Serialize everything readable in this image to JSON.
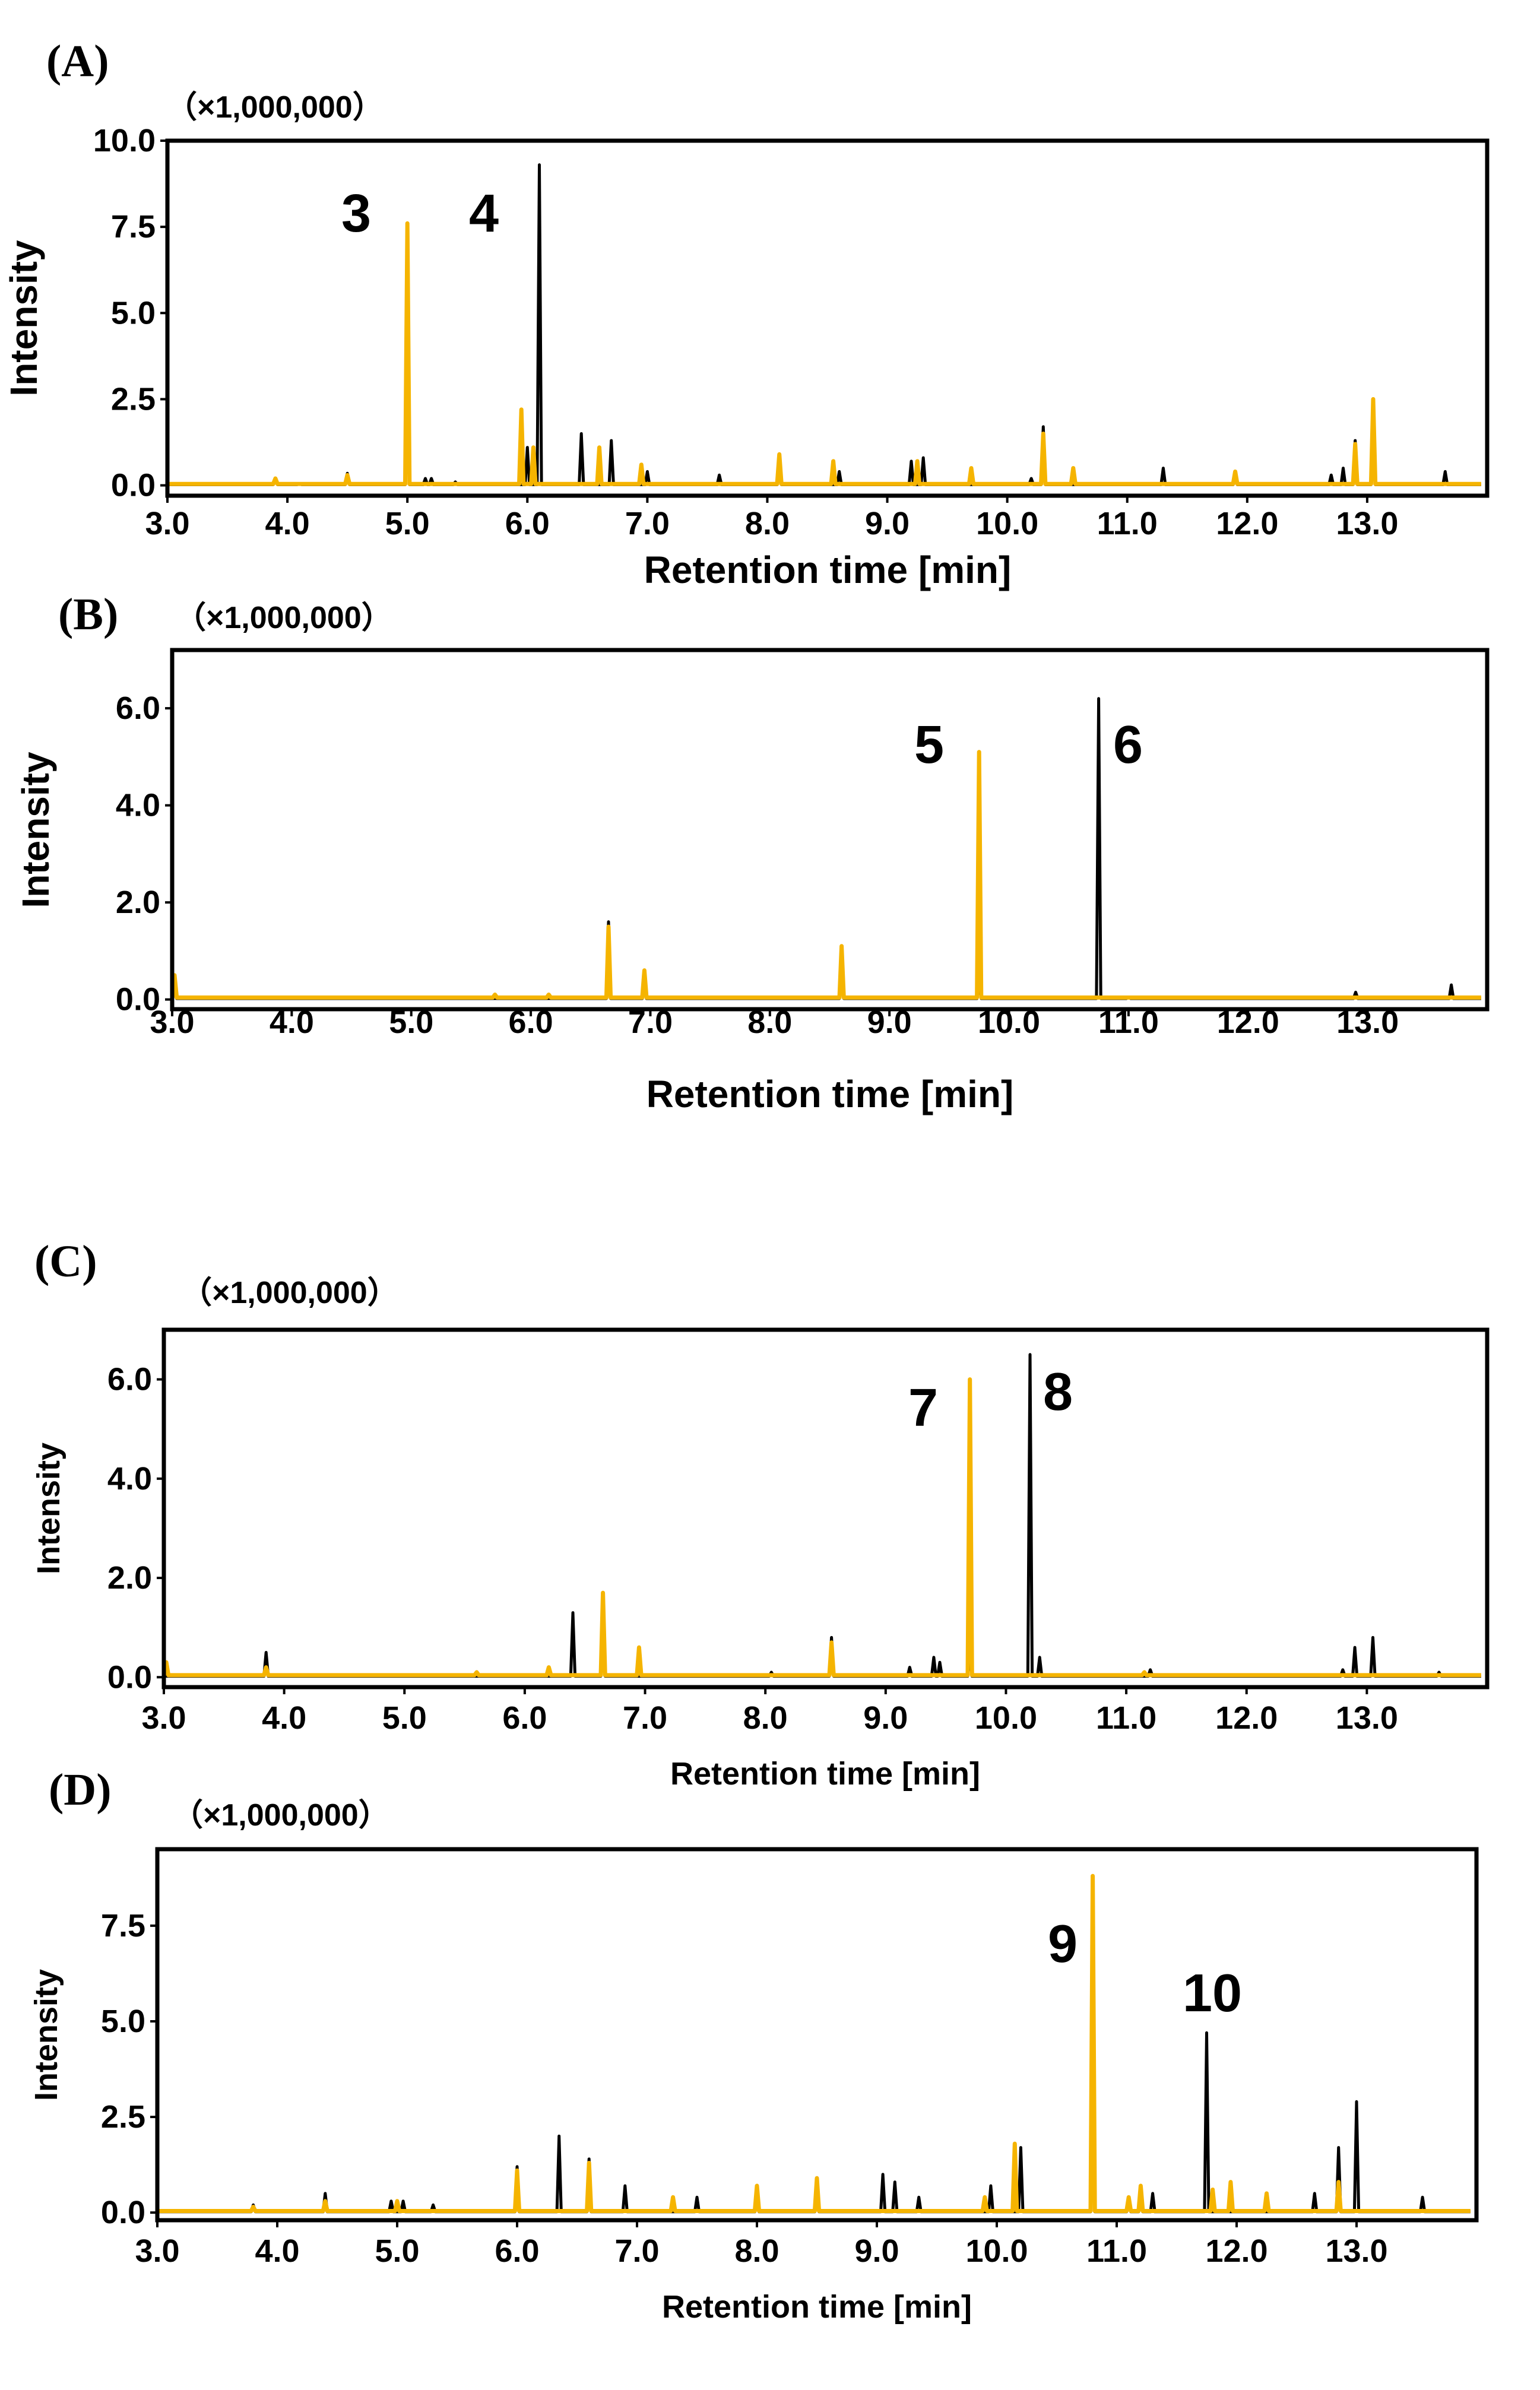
{
  "chart_data": [
    {
      "type": "line",
      "panel_label": "(A)",
      "scale_label": "（×1,000,000）",
      "xlabel": "Retention time [min]",
      "ylabel": "Intensity",
      "xlim": [
        3.0,
        14.0
      ],
      "ylim": [
        -0.3,
        10.0
      ],
      "xticks": [
        "3.0",
        "4.0",
        "5.0",
        "6.0",
        "7.0",
        "8.0",
        "9.0",
        "10.0",
        "11.0",
        "12.0",
        "13.0"
      ],
      "xtick_values": [
        3,
        4,
        5,
        6,
        7,
        8,
        9,
        10,
        11,
        12,
        13
      ],
      "yticks": [
        "0.0",
        "2.5",
        "5.0",
        "7.5",
        "10.0"
      ],
      "ytick_values": [
        0,
        2.5,
        5,
        7.5,
        10
      ],
      "series": [
        {
          "name": "black",
          "color": "#000000",
          "peaks": [
            [
              3.9,
              0.15
            ],
            [
              4.1,
              0.05
            ],
            [
              4.5,
              0.35
            ],
            [
              5.0,
              2.2
            ],
            [
              5.15,
              0.2
            ],
            [
              5.2,
              0.2
            ],
            [
              5.4,
              0.1
            ],
            [
              6.0,
              1.1
            ],
            [
              6.1,
              9.3
            ],
            [
              6.45,
              1.5
            ],
            [
              6.7,
              1.3
            ],
            [
              7.0,
              0.4
            ],
            [
              7.6,
              0.3
            ],
            [
              8.1,
              0.5
            ],
            [
              8.6,
              0.4
            ],
            [
              9.2,
              0.7
            ],
            [
              9.3,
              0.8
            ],
            [
              10.2,
              0.2
            ],
            [
              10.3,
              1.7
            ],
            [
              11.3,
              0.5
            ],
            [
              11.9,
              0.2
            ],
            [
              12.7,
              0.3
            ],
            [
              12.8,
              0.5
            ],
            [
              12.9,
              1.3
            ],
            [
              13.05,
              2.4
            ],
            [
              13.65,
              0.4
            ]
          ]
        },
        {
          "name": "orange",
          "color": "#f5b400",
          "peaks": [
            [
              3.9,
              0.2
            ],
            [
              4.5,
              0.3
            ],
            [
              5.0,
              7.6
            ],
            [
              5.95,
              2.2
            ],
            [
              6.05,
              1.1
            ],
            [
              6.6,
              1.1
            ],
            [
              6.95,
              0.6
            ],
            [
              8.1,
              0.9
            ],
            [
              8.55,
              0.7
            ],
            [
              9.25,
              0.7
            ],
            [
              9.7,
              0.5
            ],
            [
              10.3,
              1.5
            ],
            [
              10.55,
              0.5
            ],
            [
              11.9,
              0.4
            ],
            [
              12.9,
              1.2
            ],
            [
              13.05,
              2.5
            ]
          ]
        }
      ],
      "annotations": [
        {
          "text": "3",
          "x": 5.0
        },
        {
          "text": "4",
          "x": 6.1
        }
      ]
    },
    {
      "type": "line",
      "panel_label": "(B)",
      "scale_label": "（×1,000,000）",
      "xlabel": "Retention time [min]",
      "ylabel": "Intensity",
      "xlim": [
        3.0,
        14.0
      ],
      "ylim": [
        -0.2,
        7.2
      ],
      "xticks": [
        "3.0",
        "4.0",
        "5.0",
        "6.0",
        "7.0",
        "8.0",
        "9.0",
        "10.0",
        "11.0",
        "12.0",
        "13.0"
      ],
      "xtick_values": [
        3,
        4,
        5,
        6,
        7,
        8,
        9,
        10,
        11,
        12,
        13
      ],
      "yticks": [
        "0.0",
        "2.0",
        "4.0",
        "6.0"
      ],
      "ytick_values": [
        0,
        2,
        4,
        6
      ],
      "series": [
        {
          "name": "black",
          "color": "#000000",
          "peaks": [
            [
              3.02,
              0.5
            ],
            [
              6.65,
              1.6
            ],
            [
              6.95,
              0.5
            ],
            [
              8.6,
              1.0
            ],
            [
              9.75,
              0.3
            ],
            [
              10.75,
              6.2
            ],
            [
              11.0,
              0.05
            ],
            [
              12.9,
              0.15
            ],
            [
              13.7,
              0.3
            ]
          ]
        },
        {
          "name": "orange",
          "color": "#f5b400",
          "peaks": [
            [
              3.02,
              0.5
            ],
            [
              5.7,
              0.1
            ],
            [
              6.15,
              0.1
            ],
            [
              6.65,
              1.5
            ],
            [
              6.95,
              0.6
            ],
            [
              8.6,
              1.1
            ],
            [
              9.75,
              5.1
            ]
          ]
        }
      ],
      "annotations": [
        {
          "text": "5",
          "x": 9.75
        },
        {
          "text": "6",
          "x": 10.75
        }
      ]
    },
    {
      "type": "line",
      "panel_label": "(C)",
      "scale_label": "（×1,000,000）",
      "xlabel": "Retention time [min]",
      "ylabel": "Intensity",
      "xlim": [
        3.0,
        14.0
      ],
      "ylim": [
        -0.2,
        7.0
      ],
      "xticks": [
        "3.0",
        "4.0",
        "5.0",
        "6.0",
        "7.0",
        "8.0",
        "9.0",
        "10.0",
        "11.0",
        "12.0",
        "13.0"
      ],
      "xtick_values": [
        3,
        4,
        5,
        6,
        7,
        8,
        9,
        10,
        11,
        12,
        13
      ],
      "yticks": [
        "0.0",
        "2.0",
        "4.0",
        "6.0"
      ],
      "ytick_values": [
        0,
        2,
        4,
        6
      ],
      "series": [
        {
          "name": "black",
          "color": "#000000",
          "peaks": [
            [
              3.85,
              0.5
            ],
            [
              6.4,
              1.3
            ],
            [
              6.65,
              1.6
            ],
            [
              8.05,
              0.1
            ],
            [
              8.55,
              0.8
            ],
            [
              9.2,
              0.2
            ],
            [
              9.4,
              0.4
            ],
            [
              9.45,
              0.3
            ],
            [
              9.7,
              0.4
            ],
            [
              10.2,
              6.5
            ],
            [
              10.28,
              0.4
            ],
            [
              11.2,
              0.15
            ],
            [
              12.8,
              0.15
            ],
            [
              12.9,
              0.6
            ],
            [
              13.05,
              0.8
            ],
            [
              13.6,
              0.1
            ]
          ]
        },
        {
          "name": "orange",
          "color": "#f5b400",
          "peaks": [
            [
              3.02,
              0.3
            ],
            [
              3.85,
              0.2
            ],
            [
              5.6,
              0.1
            ],
            [
              6.2,
              0.2
            ],
            [
              6.65,
              1.7
            ],
            [
              6.95,
              0.6
            ],
            [
              8.55,
              0.7
            ],
            [
              9.7,
              6.0
            ],
            [
              11.15,
              0.1
            ]
          ]
        }
      ],
      "annotations": [
        {
          "text": "7",
          "x": 9.7
        },
        {
          "text": "8",
          "x": 10.2
        }
      ]
    },
    {
      "type": "line",
      "panel_label": "(D)",
      "scale_label": "（×1,000,000）",
      "xlabel": "Retention time [min]",
      "ylabel": "Intensity",
      "xlim": [
        3.0,
        14.0
      ],
      "ylim": [
        -0.2,
        9.5
      ],
      "xticks": [
        "3.0",
        "4.0",
        "5.0",
        "6.0",
        "7.0",
        "8.0",
        "9.0",
        "10.0",
        "11.0",
        "12.0",
        "13.0"
      ],
      "xtick_values": [
        3,
        4,
        5,
        6,
        7,
        8,
        9,
        10,
        11,
        12,
        13
      ],
      "yticks": [
        "0.0",
        "2.5",
        "5.0",
        "7.5"
      ],
      "ytick_values": [
        0,
        2.5,
        5,
        7.5
      ],
      "series": [
        {
          "name": "black",
          "color": "#000000",
          "peaks": [
            [
              3.8,
              0.2
            ],
            [
              4.4,
              0.5
            ],
            [
              4.95,
              0.3
            ],
            [
              5.05,
              0.3
            ],
            [
              5.3,
              0.2
            ],
            [
              6.0,
              1.2
            ],
            [
              6.35,
              2.0
            ],
            [
              6.6,
              1.4
            ],
            [
              6.9,
              0.7
            ],
            [
              7.5,
              0.4
            ],
            [
              8.0,
              0.5
            ],
            [
              8.5,
              0.4
            ],
            [
              9.05,
              1.0
            ],
            [
              9.15,
              0.8
            ],
            [
              9.35,
              0.4
            ],
            [
              9.95,
              0.7
            ],
            [
              10.2,
              1.7
            ],
            [
              10.8,
              6.8
            ],
            [
              11.1,
              0.4
            ],
            [
              11.2,
              0.6
            ],
            [
              11.3,
              0.5
            ],
            [
              11.75,
              4.7
            ],
            [
              12.65,
              0.5
            ],
            [
              12.85,
              1.7
            ],
            [
              13.0,
              2.9
            ],
            [
              13.55,
              0.4
            ]
          ]
        },
        {
          "name": "orange",
          "color": "#f5b400",
          "peaks": [
            [
              3.8,
              0.15
            ],
            [
              4.4,
              0.3
            ],
            [
              5.0,
              0.3
            ],
            [
              6.0,
              1.1
            ],
            [
              6.6,
              1.3
            ],
            [
              7.3,
              0.4
            ],
            [
              8.0,
              0.7
            ],
            [
              8.5,
              0.9
            ],
            [
              9.9,
              0.4
            ],
            [
              10.15,
              1.8
            ],
            [
              10.8,
              8.8
            ],
            [
              11.1,
              0.4
            ],
            [
              11.2,
              0.7
            ],
            [
              11.8,
              0.6
            ],
            [
              11.95,
              0.8
            ],
            [
              12.25,
              0.5
            ],
            [
              12.85,
              0.8
            ]
          ]
        }
      ],
      "annotations": [
        {
          "text": "9",
          "x": 10.8
        },
        {
          "text": "10",
          "x": 11.75
        }
      ]
    }
  ]
}
